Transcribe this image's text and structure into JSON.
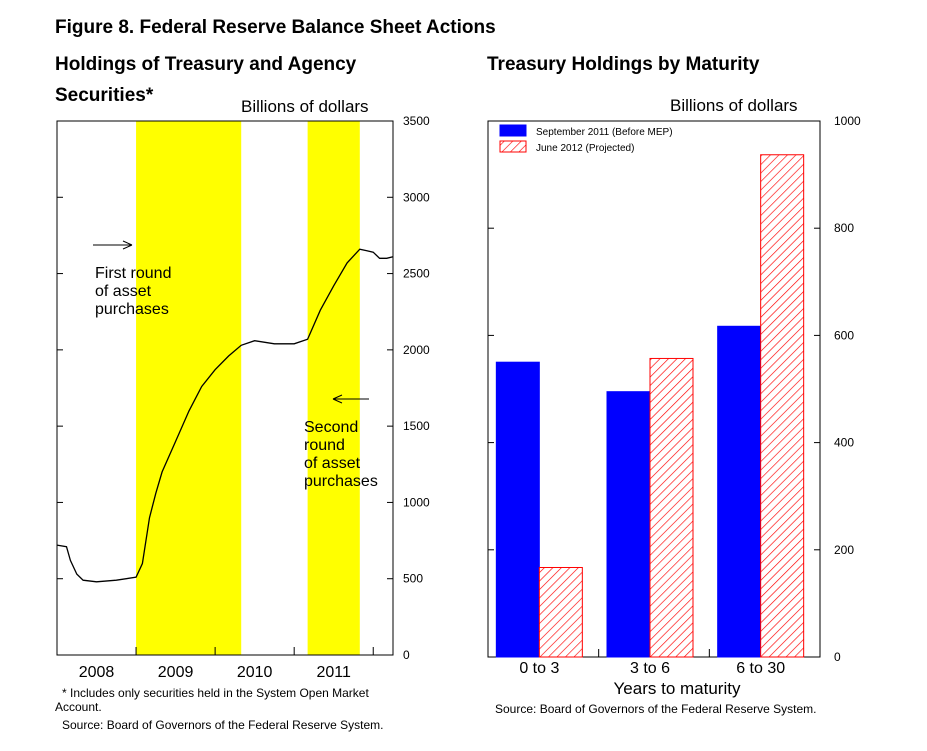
{
  "figure_title": "Figure 8.  Federal Reserve Balance Sheet Actions",
  "left": {
    "title_line1": "Holdings of Treasury and Agency",
    "title_line2": "Securities*",
    "units": "Billions of dollars",
    "footnote_line1": "* Includes only securities held in the System Open Market",
    "footnote_line2": "Account.",
    "source": "Source:  Board of Governors of the Federal Reserve System."
  },
  "right": {
    "title": "Treasury Holdings by Maturity",
    "units": "Billions of dollars",
    "source": "Source:  Board of Governors of the Federal Reserve System."
  },
  "colors": {
    "shade": "#ffff00",
    "series1": "#0000ff",
    "series2_hatch": "#ff0000",
    "line": "#000000"
  },
  "chart_data": [
    {
      "type": "line",
      "title": "Holdings of Treasury and Agency Securities*",
      "ylabel": "Billions of dollars",
      "ylim": [
        0,
        3500
      ],
      "yticks": [
        0,
        500,
        1000,
        1500,
        2000,
        2500,
        3000,
        3500
      ],
      "xlim": [
        2007.5,
        2011.75
      ],
      "xticklabels": [
        "2008",
        "2009",
        "2010",
        "2011"
      ],
      "xtick_positions": [
        2008.0,
        2009.0,
        2010.0,
        2011.0
      ],
      "legend_position": "none",
      "shaded_periods": [
        {
          "start": 2008.5,
          "end": 2009.83
        },
        {
          "start": 2010.67,
          "end": 2011.33
        }
      ],
      "annotations": [
        {
          "lines": [
            "First round",
            "of asset",
            "purchases"
          ],
          "arrow": "right"
        },
        {
          "lines": [
            "Second",
            "round",
            "of asset",
            "purchases"
          ],
          "arrow": "left"
        }
      ],
      "series": [
        {
          "x": [
            2007.5,
            2007.62,
            2007.67,
            2007.75,
            2007.83,
            2008.0,
            2008.25,
            2008.5,
            2008.58,
            2008.67,
            2008.75,
            2008.83,
            2009.0,
            2009.17,
            2009.33,
            2009.5,
            2009.67,
            2009.83,
            2010.0,
            2010.25,
            2010.5,
            2010.67,
            2010.83,
            2011.0,
            2011.17,
            2011.33,
            2011.42,
            2011.5,
            2011.58,
            2011.67,
            2011.75
          ],
          "y": [
            720,
            710,
            620,
            530,
            490,
            480,
            490,
            510,
            600,
            900,
            1060,
            1200,
            1400,
            1600,
            1760,
            1870,
            1960,
            2030,
            2060,
            2040,
            2040,
            2070,
            2260,
            2420,
            2570,
            2660,
            2650,
            2640,
            2600,
            2600,
            2610
          ]
        }
      ]
    },
    {
      "type": "bar",
      "title": "Treasury Holdings by Maturity",
      "xlabel": "Years to maturity",
      "ylabel": "Billions of dollars",
      "ylim": [
        0,
        1000
      ],
      "yticks": [
        0,
        200,
        400,
        600,
        800,
        1000
      ],
      "categories": [
        "0 to 3",
        "3 to 6",
        "6 to 30"
      ],
      "legend_position": "top-left",
      "series": [
        {
          "name": "September 2011 (Before MEP)",
          "values": [
            550,
            495,
            617
          ]
        },
        {
          "name": "June 2012 (Projected)",
          "values": [
            167,
            557,
            937
          ]
        }
      ]
    }
  ]
}
